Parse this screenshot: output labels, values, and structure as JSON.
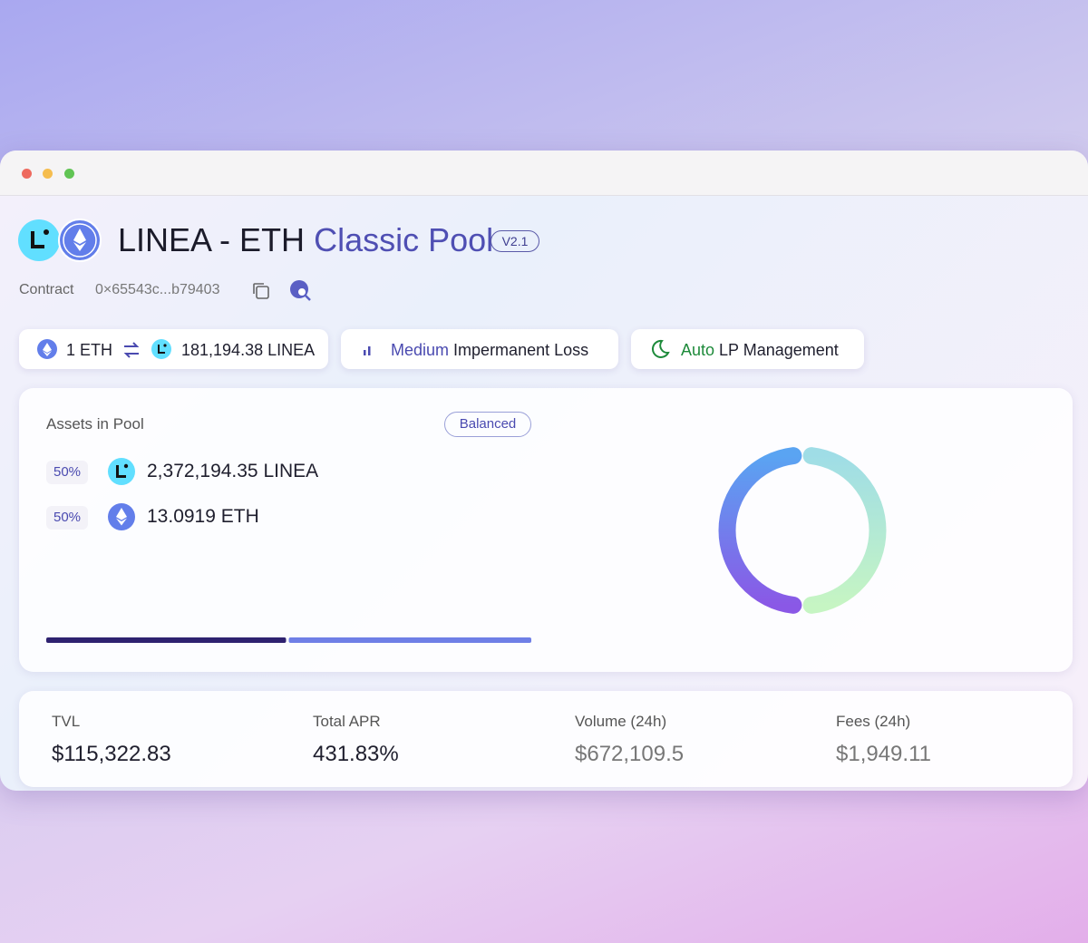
{
  "header": {
    "title_pair": "LINEA - ETH",
    "title_type": "Classic Pool",
    "version": "V2.1",
    "contract_label": "Contract",
    "contract_address": "0×65543c...b79403"
  },
  "chips": {
    "rate": {
      "base": "1 ETH",
      "quote": "181,194.38 LINEA"
    },
    "impermanent_loss": {
      "level": "Medium",
      "label": "Impermanent Loss"
    },
    "lp": {
      "mode": "Auto",
      "label": "LP Management"
    }
  },
  "assets": {
    "title": "Assets in Pool",
    "status": "Balanced",
    "items": [
      {
        "share": {
          "value": 50,
          "label": "50%"
        },
        "amount": "2,372,194.35 LINEA"
      },
      {
        "share": {
          "value": 50,
          "label": "50%"
        },
        "amount": "13.0919 ETH"
      }
    ]
  },
  "stats": [
    {
      "label": "TVL",
      "value": "$115,322.83"
    },
    {
      "label": "Total APR",
      "value": "431.83%"
    },
    {
      "label": "Volume (24h)",
      "value": "$672,109.5"
    },
    {
      "label": "Fees (24h)",
      "value": "$1,949.11"
    }
  ]
}
